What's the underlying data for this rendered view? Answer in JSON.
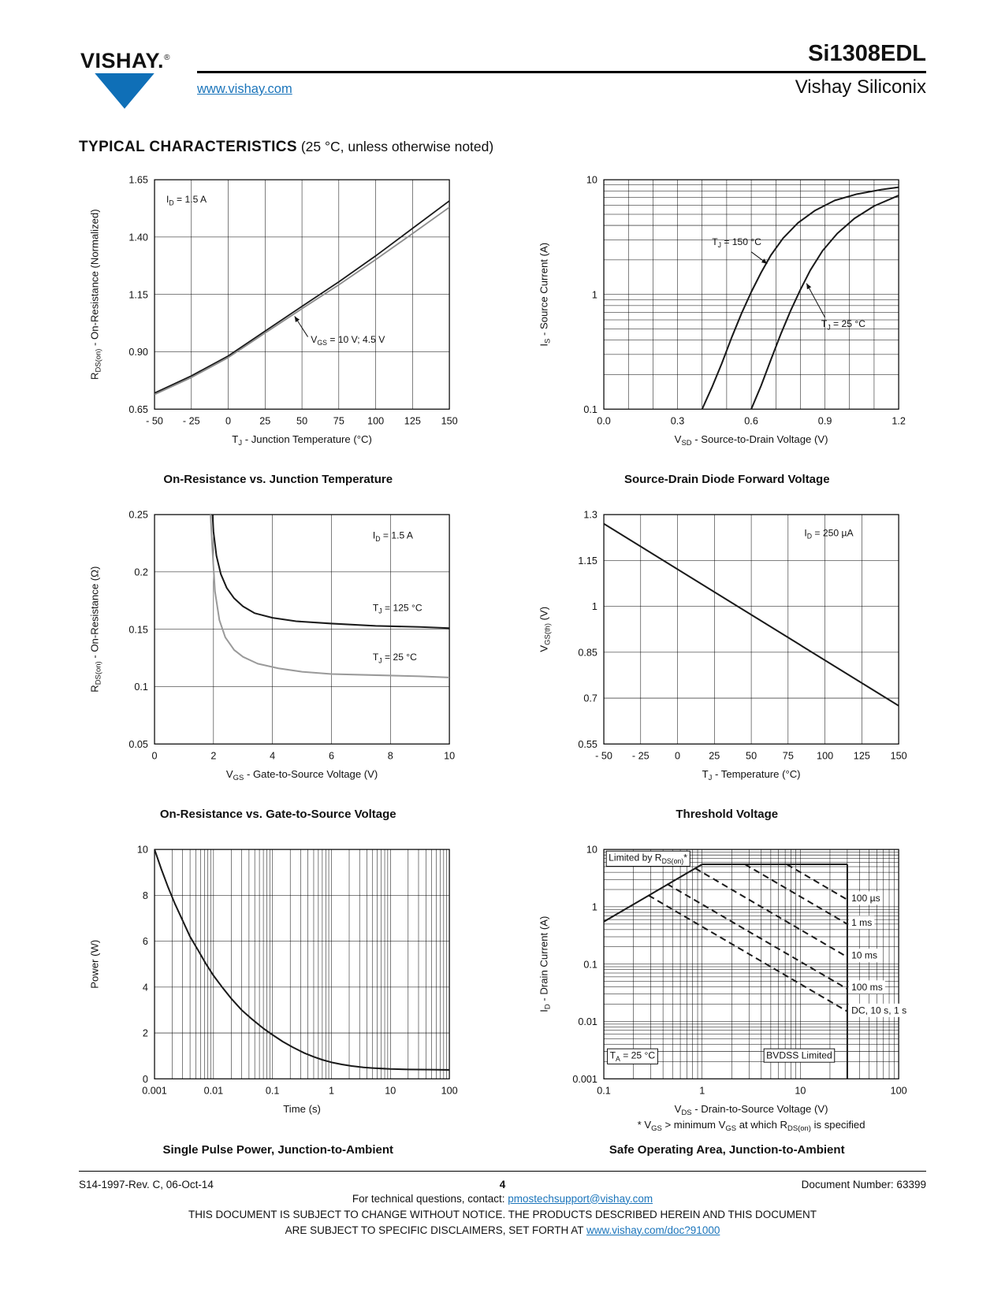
{
  "header": {
    "logo_text": "VISHAY.",
    "logo_reg": "®",
    "website": "www.vishay.com",
    "part_number": "Si1308EDL",
    "division": "Vishay Siliconix"
  },
  "section": {
    "title": "TYPICAL CHARACTERISTICS",
    "subtitle": "(25 °C, unless otherwise noted)"
  },
  "colors": {
    "link": "#1b75bb",
    "logo_blue": "#0f6fb7"
  },
  "chart_data": [
    {
      "type": "line",
      "caption": "On-Resistance vs. Junction Temperature",
      "x": {
        "label": "T_{J} - Junction Temperature (°C)",
        "min": -50,
        "max": 150,
        "scale": "linear",
        "ticks": [
          -50,
          -25,
          0,
          25,
          50,
          75,
          100,
          125,
          150
        ],
        "tickLabels": [
          "- 50",
          "- 25",
          "0",
          "25",
          "50",
          "75",
          "100",
          "125",
          "150"
        ]
      },
      "y": {
        "label": "R_{DS(on)} - On-Resistance (Normalized)",
        "min": 0.65,
        "max": 1.65,
        "scale": "linear",
        "ticks": [
          0.65,
          0.9,
          1.15,
          1.4,
          1.65
        ],
        "tickLabels": [
          "0.65",
          "0.90",
          "1.15",
          "1.40",
          "1.65"
        ]
      },
      "series": [
        {
          "name": "VGS = 4.5 V",
          "color": "#1a1a1a",
          "width": 1.8,
          "points": [
            [
              -50,
              0.72
            ],
            [
              -25,
              0.795
            ],
            [
              0,
              0.882
            ],
            [
              25,
              0.99
            ],
            [
              50,
              1.098
            ],
            [
              75,
              1.205
            ],
            [
              100,
              1.318
            ],
            [
              125,
              1.438
            ],
            [
              150,
              1.558
            ]
          ]
        },
        {
          "name": "VGS = 10 V",
          "color": "#8c8c8c",
          "width": 1.8,
          "points": [
            [
              -50,
              0.714
            ],
            [
              -25,
              0.788
            ],
            [
              0,
              0.875
            ],
            [
              25,
              0.982
            ],
            [
              50,
              1.088
            ],
            [
              75,
              1.192
            ],
            [
              100,
              1.302
            ],
            [
              125,
              1.415
            ],
            [
              150,
              1.53
            ]
          ]
        }
      ],
      "annotations": [
        {
          "text": "I_{D} = 1.5 A",
          "x": -42,
          "y": 1.55,
          "anchor": "start"
        },
        {
          "text": "V_{GS} = 10 V; 4.5 V",
          "x": 56,
          "y": 0.94,
          "anchor": "start",
          "arrow": [
            [
              54,
              0.965
            ],
            [
              45,
              1.055
            ]
          ]
        }
      ]
    },
    {
      "type": "line",
      "caption": "Source-Drain Diode Forward Voltage",
      "x": {
        "label": "V_{SD} - Source-to-Drain Voltage (V)",
        "min": 0,
        "max": 1.2,
        "scale": "linear",
        "ticks": [
          0,
          0.3,
          0.6,
          0.9,
          1.2
        ],
        "tickLabels": [
          "0.0",
          "0.3",
          "0.6",
          "0.9",
          "1.2"
        ],
        "minorStep": 0.1
      },
      "y": {
        "label": "I_{S} - Source Current (A)",
        "min": 0.1,
        "max": 10,
        "scale": "log",
        "ticks": [
          0.1,
          1,
          10
        ],
        "tickLabels": [
          "0.1",
          "1",
          "10"
        ]
      },
      "series": [
        {
          "name": "TJ = 150 °C",
          "color": "#1a1a1a",
          "width": 2,
          "points": [
            [
              0.4,
              0.1
            ],
            [
              0.44,
              0.155
            ],
            [
              0.48,
              0.25
            ],
            [
              0.52,
              0.42
            ],
            [
              0.56,
              0.68
            ],
            [
              0.6,
              1.05
            ],
            [
              0.64,
              1.55
            ],
            [
              0.68,
              2.2
            ],
            [
              0.73,
              3.1
            ],
            [
              0.79,
              4.2
            ],
            [
              0.86,
              5.4
            ],
            [
              0.94,
              6.6
            ],
            [
              1.03,
              7.5
            ],
            [
              1.13,
              8.2
            ],
            [
              1.2,
              8.6
            ]
          ]
        },
        {
          "name": "TJ = 25 °C",
          "color": "#1a1a1a",
          "width": 2,
          "points": [
            [
              0.6,
              0.1
            ],
            [
              0.64,
              0.16
            ],
            [
              0.68,
              0.27
            ],
            [
              0.72,
              0.45
            ],
            [
              0.76,
              0.72
            ],
            [
              0.8,
              1.1
            ],
            [
              0.84,
              1.62
            ],
            [
              0.89,
              2.4
            ],
            [
              0.95,
              3.4
            ],
            [
              1.02,
              4.6
            ],
            [
              1.1,
              5.9
            ],
            [
              1.2,
              7.3
            ]
          ]
        }
      ],
      "annotations": [
        {
          "text": "T_{J} = 150 °C",
          "x": 0.44,
          "y": 2.7,
          "anchor": "start",
          "arrow": [
            [
              0.6,
              2.35
            ],
            [
              0.665,
              1.85
            ]
          ]
        },
        {
          "text": "T_{J} = 25 °C",
          "x": 0.885,
          "y": 0.52,
          "anchor": "start",
          "arrow": [
            [
              0.9,
              0.63
            ],
            [
              0.825,
              1.25
            ]
          ]
        }
      ]
    },
    {
      "type": "line",
      "caption": "On-Resistance vs. Gate-to-Source Voltage",
      "x": {
        "label": "V_{GS} - Gate-to-Source Voltage (V)",
        "min": 0,
        "max": 10,
        "scale": "linear",
        "ticks": [
          0,
          2,
          4,
          6,
          8,
          10
        ],
        "tickLabels": [
          "0",
          "2",
          "4",
          "6",
          "8",
          "10"
        ]
      },
      "y": {
        "label": "R_{DS(on)} - On-Resistance (Ω)",
        "min": 0.05,
        "max": 0.25,
        "scale": "linear",
        "ticks": [
          0.05,
          0.1,
          0.15,
          0.2,
          0.25
        ],
        "tickLabels": [
          "0.05",
          "0.1",
          "0.15",
          "0.2",
          "0.25"
        ]
      },
      "series": [
        {
          "name": "TJ = 125 °C",
          "color": "#1a1a1a",
          "width": 2,
          "points": [
            [
              1.92,
              0.27
            ],
            [
              2.0,
              0.235
            ],
            [
              2.1,
              0.214
            ],
            [
              2.25,
              0.198
            ],
            [
              2.45,
              0.186
            ],
            [
              2.7,
              0.177
            ],
            [
              3.0,
              0.17
            ],
            [
              3.4,
              0.164
            ],
            [
              4.0,
              0.16
            ],
            [
              4.8,
              0.157
            ],
            [
              6.0,
              0.155
            ],
            [
              7.5,
              0.153
            ],
            [
              9.0,
              0.152
            ],
            [
              10,
              0.151
            ]
          ]
        },
        {
          "name": "TJ = 25 °C",
          "color": "#9a9a9a",
          "width": 2,
          "points": [
            [
              1.86,
              0.27
            ],
            [
              1.95,
              0.225
            ],
            [
              2.05,
              0.183
            ],
            [
              2.2,
              0.158
            ],
            [
              2.4,
              0.143
            ],
            [
              2.7,
              0.132
            ],
            [
              3.0,
              0.126
            ],
            [
              3.5,
              0.12
            ],
            [
              4.2,
              0.116
            ],
            [
              5.0,
              0.113
            ],
            [
              6.0,
              0.111
            ],
            [
              7.5,
              0.11
            ],
            [
              9.0,
              0.109
            ],
            [
              10,
              0.108
            ]
          ]
        }
      ],
      "annotations": [
        {
          "text": "I_{D} = 1.5 A",
          "x": 7.4,
          "y": 0.229,
          "anchor": "start"
        },
        {
          "text": "T_{J} = 125 °C",
          "x": 7.4,
          "y": 0.166,
          "anchor": "start"
        },
        {
          "text": "T_{J} = 25 °C",
          "x": 7.4,
          "y": 0.123,
          "anchor": "start"
        }
      ]
    },
    {
      "type": "line",
      "caption": "Threshold Voltage",
      "x": {
        "label": "T_{J} - Temperature (°C)",
        "min": -50,
        "max": 150,
        "scale": "linear",
        "ticks": [
          -50,
          -25,
          0,
          25,
          50,
          75,
          100,
          125,
          150
        ],
        "tickLabels": [
          "- 50",
          "- 25",
          "0",
          "25",
          "50",
          "75",
          "100",
          "125",
          "150"
        ]
      },
      "y": {
        "label": "V_{GS(th)} (V)",
        "min": 0.55,
        "max": 1.3,
        "scale": "linear",
        "ticks": [
          0.55,
          0.7,
          0.85,
          1,
          1.15,
          1.3
        ],
        "tickLabels": [
          "0.55",
          "0.7",
          "0.85",
          "1",
          "1.15",
          "1.3"
        ]
      },
      "series": [
        {
          "name": "VGS(th)",
          "color": "#1a1a1a",
          "width": 2,
          "points": [
            [
              -50,
              1.27
            ],
            [
              150,
              0.675
            ]
          ]
        }
      ],
      "annotations": [
        {
          "text": "I_{D} = 250 µA",
          "x": 86,
          "y": 1.23,
          "anchor": "start"
        }
      ]
    },
    {
      "type": "line",
      "caption": "Single Pulse Power, Junction-to-Ambient",
      "x": {
        "label": "Time (s)",
        "min": 0.001,
        "max": 100,
        "scale": "log",
        "ticks": [
          0.001,
          0.01,
          0.1,
          1,
          10,
          100
        ],
        "tickLabels": [
          "0.001",
          "0.01",
          "0.1",
          "1",
          "10",
          "100"
        ]
      },
      "y": {
        "label": "Power (W)",
        "min": 0,
        "max": 10,
        "scale": "linear",
        "ticks": [
          0,
          2,
          4,
          6,
          8,
          10
        ],
        "tickLabels": [
          "0",
          "2",
          "4",
          "6",
          "8",
          "10"
        ]
      },
      "series": [
        {
          "name": "single pulse power",
          "color": "#1a1a1a",
          "width": 2,
          "points": [
            [
              0.001,
              10
            ],
            [
              0.0013,
              9.15
            ],
            [
              0.0017,
              8.35
            ],
            [
              0.0022,
              7.65
            ],
            [
              0.003,
              6.9
            ],
            [
              0.004,
              6.2
            ],
            [
              0.0055,
              5.6
            ],
            [
              0.0075,
              5.0
            ],
            [
              0.01,
              4.5
            ],
            [
              0.014,
              4.0
            ],
            [
              0.02,
              3.5
            ],
            [
              0.03,
              3.0
            ],
            [
              0.045,
              2.6
            ],
            [
              0.07,
              2.2
            ],
            [
              0.1,
              1.92
            ],
            [
              0.15,
              1.62
            ],
            [
              0.22,
              1.38
            ],
            [
              0.35,
              1.12
            ],
            [
              0.5,
              0.96
            ],
            [
              0.7,
              0.83
            ],
            [
              1,
              0.72
            ],
            [
              1.5,
              0.63
            ],
            [
              2.2,
              0.56
            ],
            [
              3.5,
              0.5
            ],
            [
              5,
              0.47
            ],
            [
              7,
              0.45
            ],
            [
              10,
              0.43
            ],
            [
              20,
              0.41
            ],
            [
              50,
              0.4
            ],
            [
              100,
              0.39
            ]
          ]
        }
      ],
      "annotations": []
    },
    {
      "type": "line",
      "caption": "Safe Operating Area, Junction-to-Ambient",
      "footnote": "* V_{GS} > minimum V_{GS} at which R_{DS(on)} is specified",
      "x": {
        "label": "V_{DS} - Drain-to-Source Voltage (V)",
        "min": 0.1,
        "max": 100,
        "scale": "log",
        "ticks": [
          0.1,
          1,
          10,
          100
        ],
        "tickLabels": [
          "0.1",
          "1",
          "10",
          "100"
        ]
      },
      "y": {
        "label": "I_{D} - Drain Current (A)",
        "min": 0.001,
        "max": 10,
        "scale": "log",
        "ticks": [
          0.001,
          0.01,
          0.1,
          1,
          10
        ],
        "tickLabels": [
          "0.001",
          "0.01",
          "0.1",
          "1",
          "10"
        ]
      },
      "series": [
        {
          "name": "RDS(on) limit",
          "color": "#1a1a1a",
          "width": 2,
          "points": [
            [
              0.1,
              0.55
            ],
            [
              1.0,
              5.5
            ]
          ]
        },
        {
          "name": "peak current limit",
          "color": "#1a1a1a",
          "width": 2,
          "points": [
            [
              1.0,
              5.5
            ],
            [
              30,
              5.5
            ]
          ]
        },
        {
          "name": "BVDSS limit",
          "color": "#1a1a1a",
          "width": 2,
          "points": [
            [
              30,
              5.5
            ],
            [
              30,
              0.001
            ]
          ]
        },
        {
          "name": "100 µs",
          "color": "#1a1a1a",
          "width": 2,
          "dash": "8 5",
          "points": [
            [
              7.27,
              5.5
            ],
            [
              30,
              1.33
            ]
          ]
        },
        {
          "name": "1 ms",
          "color": "#1a1a1a",
          "width": 2,
          "dash": "8 5",
          "points": [
            [
              2.73,
              5.5
            ],
            [
              30,
              0.5
            ]
          ]
        },
        {
          "name": "10 ms",
          "color": "#1a1a1a",
          "width": 2,
          "dash": "8 5",
          "points": [
            [
              0.85,
              4.7
            ],
            [
              30,
              0.133
            ]
          ]
        },
        {
          "name": "100 ms",
          "color": "#1a1a1a",
          "width": 2,
          "dash": "8 5",
          "points": [
            [
              0.44,
              2.5
            ],
            [
              30,
              0.037
            ]
          ]
        },
        {
          "name": "DC, 10 s, 1 s",
          "color": "#1a1a1a",
          "width": 2,
          "dash": "8 5",
          "points": [
            [
              0.285,
              1.58
            ],
            [
              30,
              0.015
            ]
          ]
        }
      ],
      "annotations": [
        {
          "text": "Limited by R_{DS(on)}*",
          "x": 0.112,
          "y": 6.3,
          "anchor": "start",
          "size": 9.5,
          "box": true,
          "boxStroke": true
        },
        {
          "text": "100 µs",
          "x": 33,
          "y": 1.25,
          "anchor": "start",
          "box": true
        },
        {
          "text": "1 ms",
          "x": 33,
          "y": 0.47,
          "anchor": "start",
          "box": true
        },
        {
          "text": "10 ms",
          "x": 33,
          "y": 0.125,
          "anchor": "start",
          "box": true
        },
        {
          "text": "100 ms",
          "x": 33,
          "y": 0.035,
          "anchor": "start",
          "box": true
        },
        {
          "text": "DC, 10 s, 1 s",
          "x": 33,
          "y": 0.0138,
          "anchor": "start",
          "box": true
        },
        {
          "text": "T_{A} = 25 °C",
          "x": 0.115,
          "y": 0.00225,
          "anchor": "start",
          "box": true,
          "boxStroke": true
        },
        {
          "text": "BVDSS Limited",
          "x": 4.5,
          "y": 0.00225,
          "anchor": "start",
          "box": true,
          "boxStroke": true
        }
      ]
    }
  ],
  "footer": {
    "revision": "S14-1997-Rev. C, 06-Oct-14",
    "page_number": "4",
    "document_number": "Document Number: 63399",
    "contact_prefix": "For technical questions, contact:",
    "contact_email": "pmostechsupport@vishay.com",
    "disclaimer_line1": "THIS DOCUMENT IS SUBJECT TO CHANGE WITHOUT NOTICE. THE PRODUCTS DESCRIBED HEREIN AND THIS DOCUMENT",
    "disclaimer_line2_prefix": "ARE SUBJECT TO SPECIFIC DISCLAIMERS, SET FORTH AT",
    "disclaimer_link": "www.vishay.com/doc?91000"
  }
}
